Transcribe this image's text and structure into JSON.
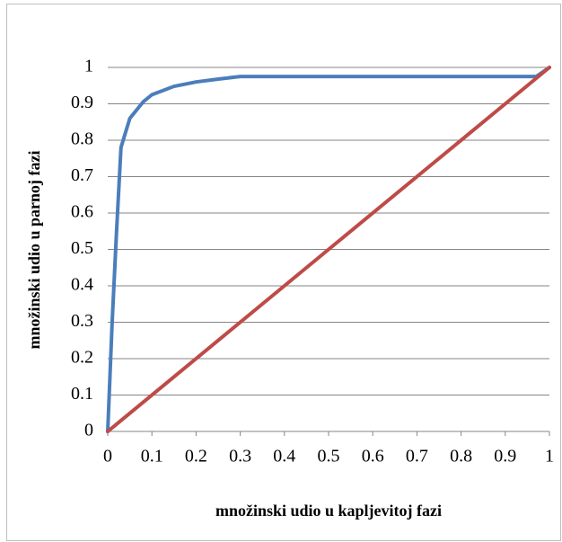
{
  "chart_data": {
    "type": "line",
    "xlabel": "množinski udio u kapljevitoj fazi",
    "ylabel": "množinski udio u parnoj fazi",
    "xlim": [
      0,
      1
    ],
    "ylim": [
      0,
      1
    ],
    "xticks": [
      0,
      0.1,
      0.2,
      0.3,
      0.4,
      0.5,
      0.6,
      0.7,
      0.8,
      0.9,
      1
    ],
    "yticks": [
      0,
      0.1,
      0.2,
      0.3,
      0.4,
      0.5,
      0.6,
      0.7,
      0.8,
      0.9,
      1
    ],
    "grid": true,
    "series": [
      {
        "color": "#4a7ebb",
        "x": [
          0,
          0.01,
          0.02,
          0.03,
          0.05,
          0.08,
          0.1,
          0.15,
          0.2,
          0.25,
          0.3,
          0.4,
          0.5,
          0.6,
          0.7,
          0.8,
          0.9,
          0.97,
          1
        ],
        "values": [
          0,
          0.3,
          0.55,
          0.78,
          0.86,
          0.905,
          0.925,
          0.948,
          0.96,
          0.968,
          0.975,
          0.975,
          0.975,
          0.975,
          0.975,
          0.975,
          0.975,
          0.975,
          1
        ]
      },
      {
        "color": "#be4b48",
        "x": [
          0,
          1
        ],
        "values": [
          0,
          1
        ]
      }
    ]
  }
}
